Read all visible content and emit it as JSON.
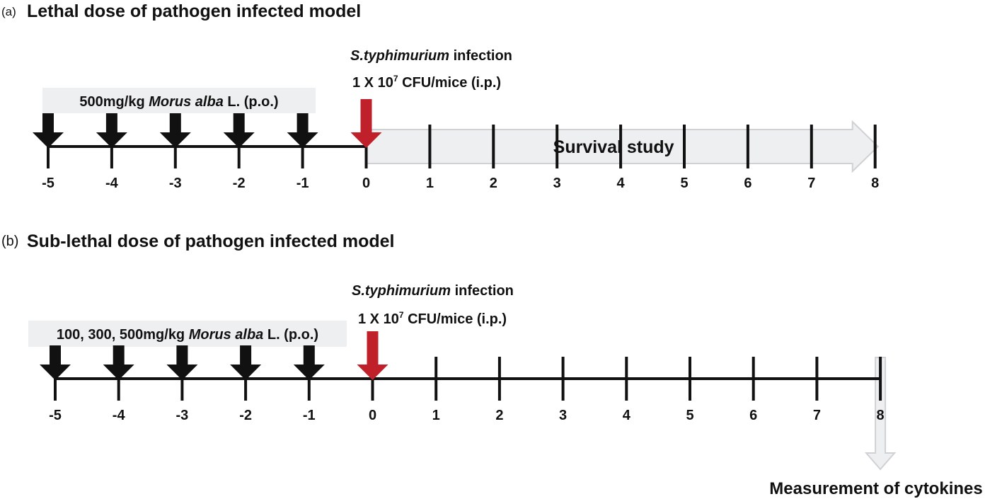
{
  "panels": [
    {
      "letter": "(a)",
      "title": "Lethal dose of pathogen infected model",
      "dose_pre": "500mg/kg ",
      "dose_italic": "Morus alba",
      "dose_post": " L. (p.o.)",
      "infection_italic": "S.typhimurium",
      "infection_post": " infection",
      "inoculum_pre": "1 X 10",
      "inoculum_sup": "7",
      "inoculum_post": " CFU/mice (i.p.)",
      "outcome": "Survival study",
      "days": [
        "-5",
        "-4",
        "-3",
        "-2",
        "-1",
        "0",
        "1",
        "2",
        "3",
        "4",
        "5",
        "6",
        "7",
        "8"
      ]
    },
    {
      "letter": "(b)",
      "title": "Sub-lethal dose of pathogen infected model",
      "dose_pre": "100, 300, 500mg/kg ",
      "dose_italic": "Morus alba",
      "dose_post": " L. (p.o.)",
      "infection_italic": "S.typhimurium",
      "infection_post": " infection",
      "inoculum_pre": "1 X 10",
      "inoculum_sup": "7",
      "inoculum_post": " CFU/mice (i.p.)",
      "outcome": "Measurement of cytokines",
      "days": [
        "-5",
        "-4",
        "-3",
        "-2",
        "-1",
        "0",
        "1",
        "2",
        "3",
        "4",
        "5",
        "6",
        "7",
        "8"
      ]
    }
  ],
  "colors": {
    "infection_arrow": "#c0202a",
    "dose_arrow": "#111111",
    "band": "#eeeff1",
    "band_stroke": "#cfd1d4"
  }
}
